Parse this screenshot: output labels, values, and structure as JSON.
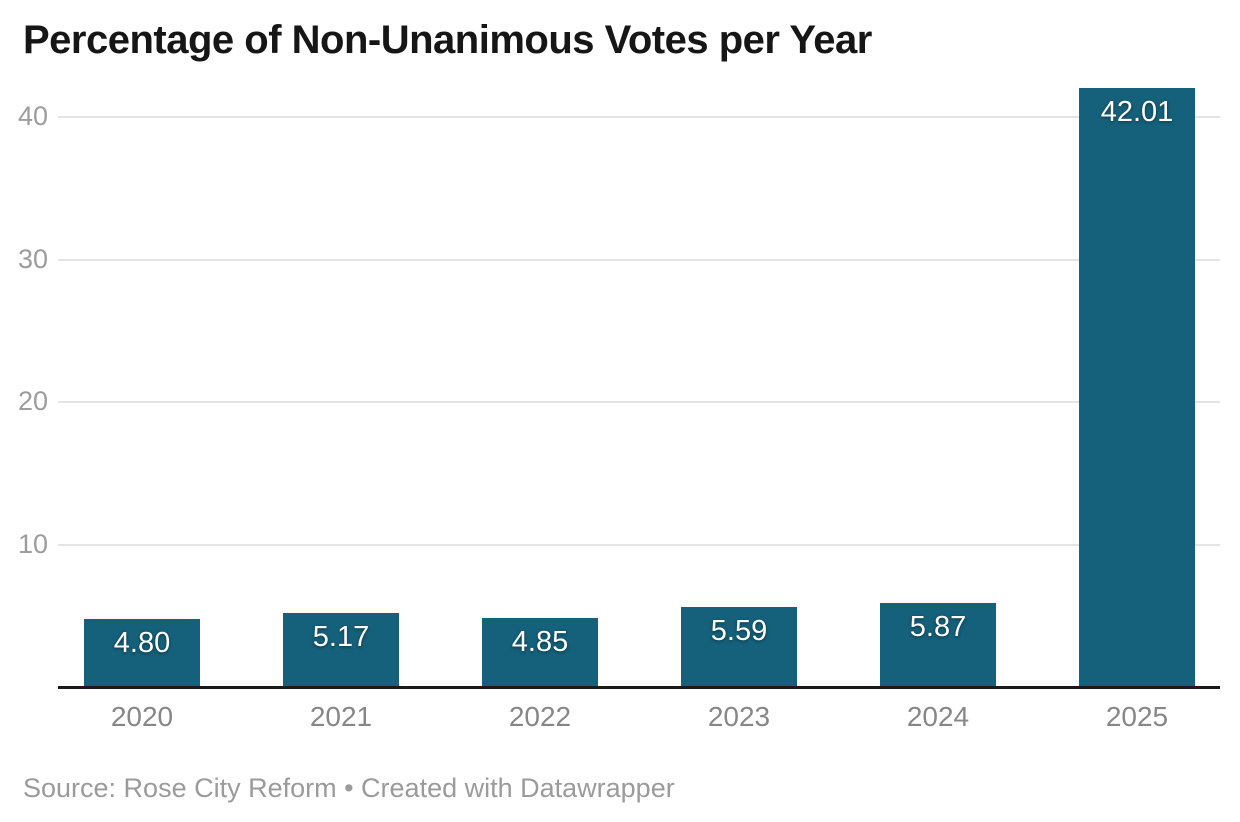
{
  "chart": {
    "title": "Percentage of Non-Unanimous Votes per Year"
  },
  "chart_data": {
    "type": "bar",
    "title": "Percentage of Non-Unanimous Votes per Year",
    "categories": [
      "2020",
      "2021",
      "2022",
      "2023",
      "2024",
      "2025"
    ],
    "values": [
      4.8,
      5.17,
      4.85,
      5.59,
      5.87,
      42.01
    ],
    "value_labels": [
      "4.80",
      "5.17",
      "4.85",
      "5.59",
      "5.87",
      "42.01"
    ],
    "xlabel": "",
    "ylabel": "",
    "ylim": [
      0,
      42.1
    ],
    "y_ticks": [
      10,
      20,
      30,
      40
    ],
    "grid": "horizontal",
    "legend": "none",
    "bar_color": "#15607a",
    "value_label_color": "#ffffff",
    "gridline_color": "#e4e4e4",
    "axis_label_color": "#878787",
    "tick_label_color": "#9d9d9d"
  },
  "footer": {
    "text": "Source: Rose City Reform • Created with Datawrapper"
  }
}
